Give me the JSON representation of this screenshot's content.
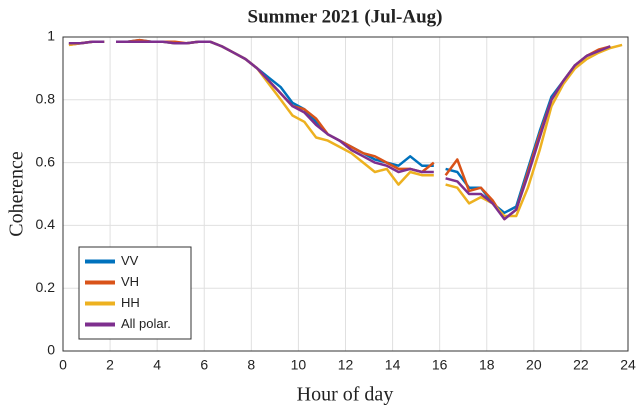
{
  "chart_data": {
    "type": "line",
    "title": "Summer 2021 (Jul-Aug)",
    "xlabel": "Hour of day",
    "ylabel": "Coherence",
    "x": [
      0.25,
      0.75,
      1.25,
      1.75,
      2.0,
      2.25,
      2.75,
      3.25,
      3.75,
      4.25,
      4.75,
      5.25,
      5.75,
      6.25,
      6.75,
      7.25,
      7.75,
      8.25,
      8.75,
      9.25,
      9.75,
      10.25,
      10.75,
      11.25,
      11.75,
      12.25,
      12.75,
      13.25,
      13.75,
      14.25,
      14.75,
      15.25,
      15.75,
      16.0,
      16.25,
      16.75,
      17.25,
      17.75,
      18.25,
      18.75,
      19.25,
      19.75,
      20.25,
      20.75,
      21.25,
      21.75,
      22.25,
      22.75,
      23.25,
      23.75
    ],
    "series": [
      {
        "name": "VV",
        "color": "#0072bd",
        "values": [
          0.98,
          0.98,
          0.985,
          0.985,
          null,
          0.985,
          0.985,
          0.99,
          0.985,
          0.985,
          0.98,
          0.98,
          0.985,
          0.985,
          0.97,
          0.95,
          0.93,
          0.9,
          0.87,
          0.84,
          0.79,
          0.77,
          0.73,
          0.69,
          0.67,
          0.65,
          0.63,
          0.61,
          0.6,
          0.59,
          0.62,
          0.59,
          0.59,
          null,
          0.58,
          0.57,
          0.52,
          0.52,
          0.47,
          0.44,
          0.46,
          0.58,
          0.7,
          0.81,
          0.86,
          0.91,
          0.94,
          0.955,
          0.97,
          null
        ]
      },
      {
        "name": "VH",
        "color": "#d95319",
        "values": [
          0.975,
          0.98,
          0.985,
          0.985,
          null,
          0.985,
          0.985,
          0.99,
          0.985,
          0.985,
          0.985,
          0.98,
          0.985,
          0.985,
          0.97,
          0.95,
          0.93,
          0.9,
          0.86,
          0.82,
          0.78,
          0.77,
          0.74,
          0.69,
          0.67,
          0.65,
          0.63,
          0.62,
          0.6,
          0.58,
          0.58,
          0.57,
          0.6,
          null,
          0.56,
          0.61,
          0.51,
          0.52,
          0.48,
          0.42,
          0.45,
          0.57,
          0.69,
          0.8,
          0.86,
          0.91,
          0.94,
          0.96,
          0.97,
          null
        ]
      },
      {
        "name": "HH",
        "color": "#edb120",
        "values": [
          0.975,
          0.98,
          0.985,
          0.985,
          null,
          0.985,
          0.985,
          0.985,
          0.985,
          0.985,
          0.98,
          0.98,
          0.985,
          0.985,
          0.97,
          0.95,
          0.93,
          0.9,
          0.85,
          0.8,
          0.75,
          0.73,
          0.68,
          0.67,
          0.65,
          0.63,
          0.6,
          0.57,
          0.58,
          0.53,
          0.57,
          0.56,
          0.56,
          null,
          0.53,
          0.52,
          0.47,
          0.49,
          0.47,
          0.43,
          0.43,
          0.52,
          0.64,
          0.78,
          0.85,
          0.9,
          0.93,
          0.95,
          0.965,
          0.975
        ]
      },
      {
        "name": "All polar.",
        "color": "#7e2f8e",
        "values": [
          0.98,
          0.98,
          0.985,
          0.985,
          null,
          0.985,
          0.985,
          0.985,
          0.985,
          0.985,
          0.98,
          0.98,
          0.985,
          0.985,
          0.97,
          0.95,
          0.93,
          0.9,
          0.86,
          0.82,
          0.78,
          0.76,
          0.72,
          0.69,
          0.67,
          0.64,
          0.62,
          0.6,
          0.59,
          0.57,
          0.58,
          0.57,
          0.57,
          null,
          0.55,
          0.54,
          0.5,
          0.5,
          0.47,
          0.42,
          0.45,
          0.56,
          0.68,
          0.8,
          0.86,
          0.91,
          0.94,
          0.955,
          0.97,
          null
        ]
      }
    ],
    "xlim": [
      0,
      24
    ],
    "xticks": [
      0,
      2,
      4,
      6,
      8,
      10,
      12,
      14,
      16,
      18,
      20,
      22,
      24
    ],
    "ylim": [
      0,
      1
    ],
    "yticks": [
      0,
      0.2,
      0.4,
      0.6,
      0.8,
      1
    ],
    "grid": true,
    "legend": "lower left"
  }
}
